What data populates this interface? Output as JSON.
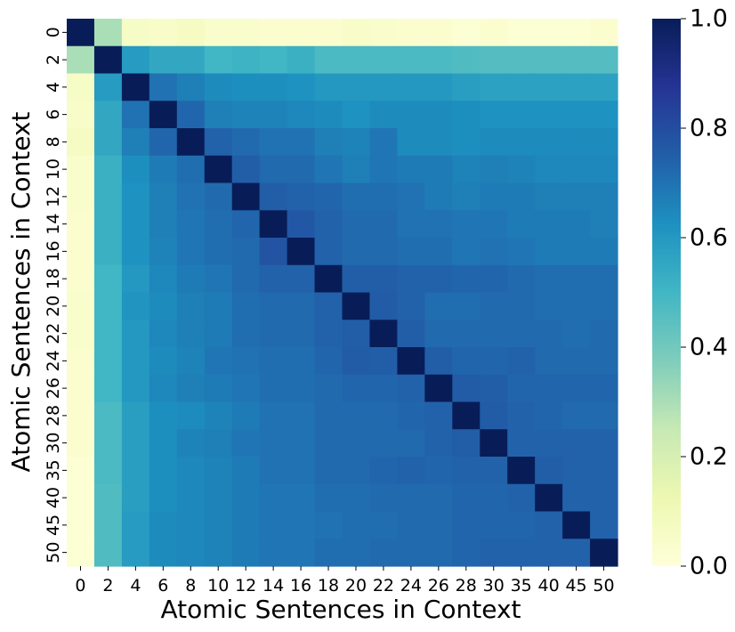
{
  "chart_data": {
    "type": "heatmap",
    "title": "",
    "xlabel": "Atomic Sentences in Context",
    "ylabel": "Atomic Sentences in Context",
    "categories": [
      "0",
      "2",
      "4",
      "6",
      "8",
      "10",
      "12",
      "14",
      "16",
      "18",
      "20",
      "22",
      "24",
      "26",
      "28",
      "30",
      "35",
      "40",
      "45",
      "50"
    ],
    "colormap": "YlGnBu",
    "colorbar": {
      "range": [
        0.0,
        1.0
      ],
      "ticks": [
        "0.0",
        "0.2",
        "0.4",
        "0.6",
        "0.8",
        "1.0"
      ],
      "placement": "right"
    },
    "values": [
      [
        1.0,
        0.3,
        0.06,
        0.05,
        0.07,
        0.04,
        0.04,
        0.03,
        0.03,
        0.03,
        0.05,
        0.04,
        0.03,
        0.03,
        0.02,
        0.03,
        0.02,
        0.02,
        0.02,
        0.03
      ],
      [
        0.3,
        1.0,
        0.59,
        0.55,
        0.55,
        0.5,
        0.51,
        0.5,
        0.52,
        0.48,
        0.48,
        0.48,
        0.48,
        0.48,
        0.47,
        0.46,
        0.46,
        0.46,
        0.46,
        0.46
      ],
      [
        0.06,
        0.59,
        1.0,
        0.7,
        0.67,
        0.64,
        0.63,
        0.63,
        0.62,
        0.6,
        0.6,
        0.6,
        0.6,
        0.6,
        0.58,
        0.57,
        0.57,
        0.57,
        0.57,
        0.57
      ],
      [
        0.05,
        0.55,
        0.7,
        1.0,
        0.73,
        0.67,
        0.66,
        0.66,
        0.65,
        0.64,
        0.62,
        0.64,
        0.64,
        0.64,
        0.63,
        0.62,
        0.62,
        0.62,
        0.62,
        0.62
      ],
      [
        0.07,
        0.55,
        0.67,
        0.73,
        1.0,
        0.74,
        0.72,
        0.7,
        0.7,
        0.67,
        0.66,
        0.69,
        0.64,
        0.64,
        0.63,
        0.64,
        0.64,
        0.64,
        0.64,
        0.64
      ],
      [
        0.04,
        0.52,
        0.63,
        0.68,
        0.71,
        1.0,
        0.75,
        0.72,
        0.72,
        0.69,
        0.67,
        0.69,
        0.68,
        0.68,
        0.66,
        0.67,
        0.66,
        0.65,
        0.65,
        0.65
      ],
      [
        0.04,
        0.52,
        0.62,
        0.67,
        0.7,
        0.72,
        1.0,
        0.75,
        0.74,
        0.73,
        0.71,
        0.71,
        0.7,
        0.68,
        0.67,
        0.68,
        0.68,
        0.67,
        0.67,
        0.67
      ],
      [
        0.03,
        0.52,
        0.62,
        0.67,
        0.69,
        0.71,
        0.73,
        1.0,
        0.77,
        0.74,
        0.72,
        0.72,
        0.7,
        0.7,
        0.69,
        0.69,
        0.68,
        0.68,
        0.68,
        0.67
      ],
      [
        0.03,
        0.52,
        0.62,
        0.66,
        0.69,
        0.71,
        0.72,
        0.78,
        1.0,
        0.74,
        0.72,
        0.72,
        0.71,
        0.71,
        0.69,
        0.7,
        0.69,
        0.68,
        0.68,
        0.68
      ],
      [
        0.03,
        0.5,
        0.6,
        0.65,
        0.68,
        0.69,
        0.72,
        0.74,
        0.74,
        1.0,
        0.75,
        0.75,
        0.74,
        0.74,
        0.73,
        0.73,
        0.72,
        0.71,
        0.71,
        0.71
      ],
      [
        0.04,
        0.5,
        0.61,
        0.64,
        0.67,
        0.68,
        0.71,
        0.72,
        0.72,
        0.74,
        1.0,
        0.76,
        0.74,
        0.71,
        0.71,
        0.72,
        0.72,
        0.71,
        0.71,
        0.71
      ],
      [
        0.04,
        0.5,
        0.6,
        0.65,
        0.67,
        0.68,
        0.71,
        0.72,
        0.72,
        0.74,
        0.75,
        1.0,
        0.75,
        0.72,
        0.72,
        0.72,
        0.72,
        0.72,
        0.71,
        0.72
      ],
      [
        0.03,
        0.5,
        0.6,
        0.64,
        0.66,
        0.69,
        0.7,
        0.71,
        0.71,
        0.73,
        0.76,
        0.75,
        1.0,
        0.75,
        0.73,
        0.73,
        0.74,
        0.72,
        0.72,
        0.72
      ],
      [
        0.03,
        0.5,
        0.6,
        0.65,
        0.67,
        0.68,
        0.69,
        0.71,
        0.71,
        0.72,
        0.73,
        0.73,
        0.74,
        1.0,
        0.76,
        0.75,
        0.73,
        0.73,
        0.73,
        0.73
      ],
      [
        0.03,
        0.48,
        0.58,
        0.63,
        0.64,
        0.66,
        0.68,
        0.7,
        0.7,
        0.72,
        0.72,
        0.72,
        0.73,
        0.74,
        1.0,
        0.76,
        0.74,
        0.73,
        0.72,
        0.72
      ],
      [
        0.03,
        0.48,
        0.58,
        0.63,
        0.66,
        0.67,
        0.69,
        0.7,
        0.7,
        0.72,
        0.72,
        0.72,
        0.72,
        0.74,
        0.75,
        1.0,
        0.74,
        0.74,
        0.74,
        0.74
      ],
      [
        0.02,
        0.48,
        0.58,
        0.63,
        0.65,
        0.66,
        0.68,
        0.7,
        0.7,
        0.72,
        0.72,
        0.73,
        0.74,
        0.73,
        0.74,
        0.74,
        1.0,
        0.75,
        0.74,
        0.74
      ],
      [
        0.02,
        0.47,
        0.58,
        0.63,
        0.65,
        0.66,
        0.68,
        0.69,
        0.69,
        0.71,
        0.71,
        0.72,
        0.72,
        0.72,
        0.73,
        0.73,
        0.74,
        1.0,
        0.74,
        0.74
      ],
      [
        0.02,
        0.47,
        0.59,
        0.64,
        0.65,
        0.66,
        0.68,
        0.69,
        0.69,
        0.7,
        0.71,
        0.71,
        0.72,
        0.72,
        0.73,
        0.73,
        0.73,
        0.74,
        1.0,
        0.74
      ],
      [
        0.02,
        0.47,
        0.59,
        0.64,
        0.65,
        0.66,
        0.68,
        0.69,
        0.69,
        0.71,
        0.71,
        0.72,
        0.72,
        0.72,
        0.73,
        0.74,
        0.74,
        0.74,
        0.74,
        1.0
      ]
    ]
  }
}
